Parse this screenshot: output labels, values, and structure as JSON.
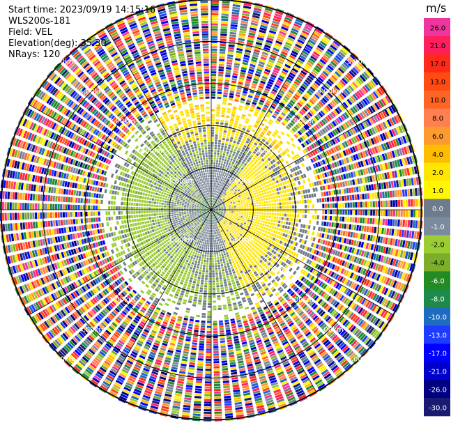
{
  "info": {
    "start_time": "Start time: 2023/09/19 14:15:16",
    "instrument": "WLS200s-181",
    "field": "Field: VEL",
    "elevation": "Elevation(deg): 35.30",
    "nrays": "NRays: 120"
  },
  "chart_data": {
    "type": "heatmap",
    "projection": "polar-ppi",
    "field": "VEL",
    "units": "m/s",
    "nrays": 120,
    "elevation_deg": 35.3,
    "max_range_km": 5.0,
    "range_ring_km": [
      1.0,
      2.0,
      3.0,
      4.0,
      5.0
    ],
    "range_ring_labels": [
      "1.00km",
      "2.00km",
      "3.00km",
      "4.00km",
      "5.00km"
    ],
    "spoke_angles_deg": [
      0,
      30,
      60,
      90,
      120,
      150,
      180,
      210,
      240,
      270,
      300,
      330
    ],
    "pattern": {
      "inner_core_km": [
        0,
        0.3
      ],
      "near_field_values": {
        "north_west": -1.0,
        "west": -2.0,
        "east": 3.0,
        "north_arc": 3.0
      },
      "clean_signal_limit_km": 2.6,
      "noise_beyond_km": 2.6
    },
    "colorbar": {
      "title": "m/s",
      "ticks": [
        "26.0",
        "21.0",
        "17.0",
        "13.0",
        "10.0",
        "8.0",
        "6.0",
        "4.0",
        "2.0",
        "1.0",
        "0.0",
        "-1.0",
        "-2.0",
        "-4.0",
        "-6.0",
        "-8.0",
        "-10.0",
        "-13.0",
        "-17.0",
        "-21.0",
        "-26.0",
        "-30.0"
      ],
      "colors": [
        "#f0349e",
        "#ff1f5c",
        "#ff2a1a",
        "#ff4a12",
        "#ff6424",
        "#ff7f50",
        "#ff9a2e",
        "#ffbd00",
        "#ffe500",
        "#fff700",
        "#6e7b8b",
        "#7c8a9e",
        "#9acd32",
        "#7cae2a",
        "#228b22",
        "#1e8a4a",
        "#1e6bbf",
        "#1e3cff",
        "#0000ff",
        "#0000cd",
        "#000080",
        "#1a1a70"
      ]
    }
  }
}
